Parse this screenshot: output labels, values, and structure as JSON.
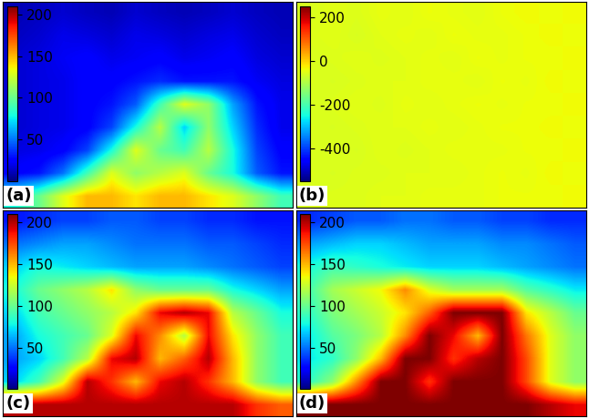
{
  "chart_data": [
    {
      "type": "heatmap",
      "label": "(a)",
      "tick_labels": false,
      "color": "jet",
      "colorbar_range": [
        0,
        210
      ],
      "colorbar_ticks": [
        50,
        100,
        150,
        200
      ],
      "cells": [
        [
          10,
          12,
          15,
          12,
          10,
          15,
          12,
          10,
          12,
          15,
          12,
          10
        ],
        [
          12,
          15,
          20,
          18,
          15,
          20,
          18,
          15,
          18,
          20,
          15,
          12
        ],
        [
          15,
          18,
          22,
          25,
          20,
          22,
          25,
          20,
          22,
          25,
          18,
          15
        ],
        [
          15,
          18,
          20,
          25,
          25,
          30,
          35,
          30,
          30,
          30,
          22,
          18
        ],
        [
          15,
          18,
          20,
          25,
          30,
          45,
          90,
          130,
          110,
          60,
          30,
          20
        ],
        [
          15,
          18,
          20,
          25,
          40,
          80,
          120,
          70,
          110,
          70,
          35,
          20
        ],
        [
          18,
          20,
          25,
          40,
          80,
          130,
          100,
          90,
          120,
          80,
          40,
          25
        ],
        [
          25,
          30,
          50,
          90,
          130,
          110,
          120,
          130,
          100,
          80,
          45,
          30
        ],
        [
          80,
          100,
          130,
          150,
          150,
          140,
          150,
          150,
          140,
          130,
          110,
          90
        ]
      ]
    },
    {
      "type": "heatmap",
      "label": "(b)",
      "tick_labels": false,
      "color": "jet",
      "colorbar_range": [
        -550,
        250
      ],
      "colorbar_ticks": [
        -400,
        -200,
        0,
        200
      ],
      "cells": [
        [
          -60,
          -50,
          -55,
          -45,
          -50,
          -40,
          -45,
          -50,
          -40,
          -35,
          -40,
          -35
        ],
        [
          -55,
          -50,
          -60,
          -50,
          -45,
          -50,
          -40,
          -45,
          -45,
          -40,
          -35,
          -40
        ],
        [
          -60,
          -55,
          -50,
          -55,
          -50,
          -45,
          -50,
          -40,
          -45,
          -40,
          -40,
          -35
        ],
        [
          -55,
          -60,
          -55,
          -50,
          -50,
          -45,
          -45,
          -50,
          -40,
          -45,
          -35,
          -40
        ],
        [
          -60,
          -55,
          -50,
          -55,
          -45,
          -50,
          -45,
          -40,
          -45,
          -40,
          -40,
          -35
        ],
        [
          -55,
          -60,
          -55,
          -50,
          -50,
          -45,
          -50,
          -45,
          -40,
          -40,
          -35,
          -40
        ],
        [
          -60,
          -55,
          -60,
          -50,
          -55,
          -50,
          -45,
          -45,
          -45,
          -40,
          -40,
          -35
        ],
        [
          -55,
          -60,
          -55,
          -55,
          -50,
          -50,
          -50,
          -45,
          -40,
          -45,
          -35,
          -40
        ],
        [
          -60,
          -55,
          -55,
          -50,
          -50,
          -45,
          -45,
          -45,
          -40,
          -40,
          -40,
          -35
        ]
      ]
    },
    {
      "type": "heatmap",
      "label": "(c)",
      "tick_labels": false,
      "color": "jet",
      "colorbar_range": [
        0,
        210
      ],
      "colorbar_ticks": [
        50,
        100,
        150,
        200
      ],
      "cells": [
        [
          30,
          35,
          40,
          40,
          45,
          45,
          40,
          40,
          35,
          35,
          30,
          30
        ],
        [
          50,
          55,
          60,
          60,
          55,
          50,
          50,
          50,
          45,
          45,
          40,
          35
        ],
        [
          70,
          80,
          75,
          70,
          65,
          60,
          60,
          60,
          55,
          50,
          45,
          40
        ],
        [
          80,
          100,
          110,
          120,
          140,
          110,
          100,
          100,
          100,
          80,
          70,
          60
        ],
        [
          70,
          90,
          100,
          110,
          120,
          140,
          190,
          200,
          190,
          120,
          100,
          80
        ],
        [
          60,
          80,
          90,
          100,
          130,
          190,
          160,
          120,
          190,
          140,
          110,
          90
        ],
        [
          60,
          70,
          90,
          120,
          190,
          200,
          150,
          170,
          200,
          150,
          110,
          90
        ],
        [
          70,
          90,
          130,
          200,
          180,
          150,
          190,
          200,
          180,
          150,
          110,
          90
        ],
        [
          200,
          200,
          200,
          200,
          200,
          200,
          200,
          200,
          200,
          200,
          180,
          170
        ]
      ]
    },
    {
      "type": "heatmap",
      "label": "(d)",
      "tick_labels": false,
      "color": "jet",
      "colorbar_range": [
        0,
        210
      ],
      "colorbar_ticks": [
        50,
        100,
        150,
        200
      ],
      "cells": [
        [
          35,
          40,
          45,
          45,
          50,
          50,
          45,
          45,
          40,
          40,
          35,
          35
        ],
        [
          60,
          65,
          70,
          70,
          65,
          60,
          60,
          60,
          55,
          55,
          50,
          45
        ],
        [
          80,
          90,
          85,
          80,
          75,
          70,
          70,
          70,
          65,
          60,
          55,
          50
        ],
        [
          90,
          115,
          125,
          135,
          160,
          130,
          115,
          115,
          115,
          95,
          85,
          75
        ],
        [
          85,
          105,
          115,
          125,
          140,
          170,
          210,
          210,
          210,
          140,
          120,
          100
        ],
        [
          75,
          95,
          105,
          120,
          160,
          210,
          190,
          150,
          210,
          165,
          130,
          110
        ],
        [
          75,
          85,
          110,
          150,
          210,
          210,
          180,
          200,
          210,
          175,
          130,
          110
        ],
        [
          85,
          110,
          160,
          210,
          210,
          180,
          210,
          210,
          210,
          175,
          130,
          110
        ],
        [
          210,
          210,
          210,
          210,
          210,
          210,
          210,
          210,
          210,
          210,
          200,
          190
        ]
      ]
    }
  ]
}
